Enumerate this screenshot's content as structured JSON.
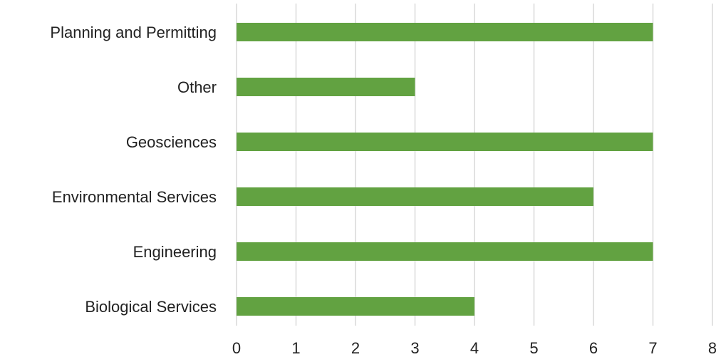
{
  "chart_data": {
    "type": "bar",
    "orientation": "horizontal",
    "categories": [
      "Planning and Permitting",
      "Other",
      "Geosciences",
      "Environmental Services",
      "Engineering",
      "Biological Services"
    ],
    "values": [
      7,
      3,
      7,
      6,
      7,
      4
    ],
    "xlim": [
      0,
      8
    ],
    "xticks": [
      "0",
      "1",
      "2",
      "3",
      "4",
      "5",
      "6",
      "7",
      "8"
    ],
    "grid": "vertical",
    "legend": "none",
    "colors": {
      "bar": "#62a241",
      "grid": "#d9d9d9",
      "text": "#222222"
    }
  }
}
